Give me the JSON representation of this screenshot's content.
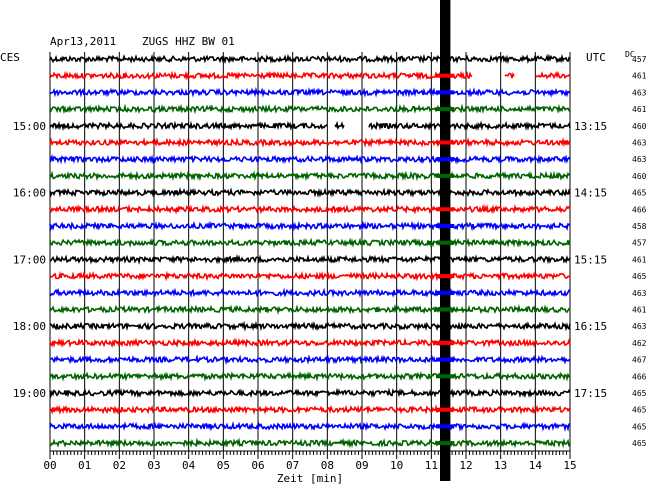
{
  "header": {
    "date": "Apr13,2011",
    "station": "ZUGS HHZ BW 01",
    "left_zone": "CES",
    "right_zone": "UTC",
    "dc_label": "DC"
  },
  "chart_data": {
    "type": "seismogram",
    "xlabel": "Zeit [min]",
    "x_ticks": [
      "00",
      "01",
      "02",
      "03",
      "04",
      "05",
      "06",
      "07",
      "08",
      "09",
      "10",
      "11",
      "12",
      "13",
      "14",
      "15"
    ],
    "xlim": [
      0,
      15
    ],
    "trace_colors": [
      "#000000",
      "#ff0000",
      "#0000ff",
      "#006400"
    ],
    "left_hour_labels": [
      {
        "trace": 4,
        "text": "15:00"
      },
      {
        "trace": 8,
        "text": "16:00"
      },
      {
        "trace": 12,
        "text": "17:00"
      },
      {
        "trace": 16,
        "text": "18:00"
      },
      {
        "trace": 20,
        "text": "19:00"
      }
    ],
    "right_hour_labels": [
      {
        "trace": 4,
        "text": "13:15"
      },
      {
        "trace": 8,
        "text": "14:15"
      },
      {
        "trace": 12,
        "text": "15:15"
      },
      {
        "trace": 16,
        "text": "16:15"
      },
      {
        "trace": 20,
        "text": "17:15"
      }
    ],
    "dc_offsets": [
      "457",
      "461",
      "463",
      "461",
      "460",
      "463",
      "463",
      "460",
      "465",
      "466",
      "458",
      "457",
      "461",
      "465",
      "463",
      "461",
      "463",
      "462",
      "467",
      "466",
      "465",
      "465",
      "465",
      "465"
    ],
    "gaps": [
      {
        "trace": 1,
        "start": 12.2,
        "end": 13.1
      },
      {
        "trace": 1,
        "start": 13.4,
        "end": 14.0
      },
      {
        "trace": 4,
        "start": 8.0,
        "end": 8.2
      },
      {
        "trace": 4,
        "start": 8.5,
        "end": 9.2
      }
    ],
    "event": {
      "start": 11.25,
      "end": 11.55
    }
  }
}
